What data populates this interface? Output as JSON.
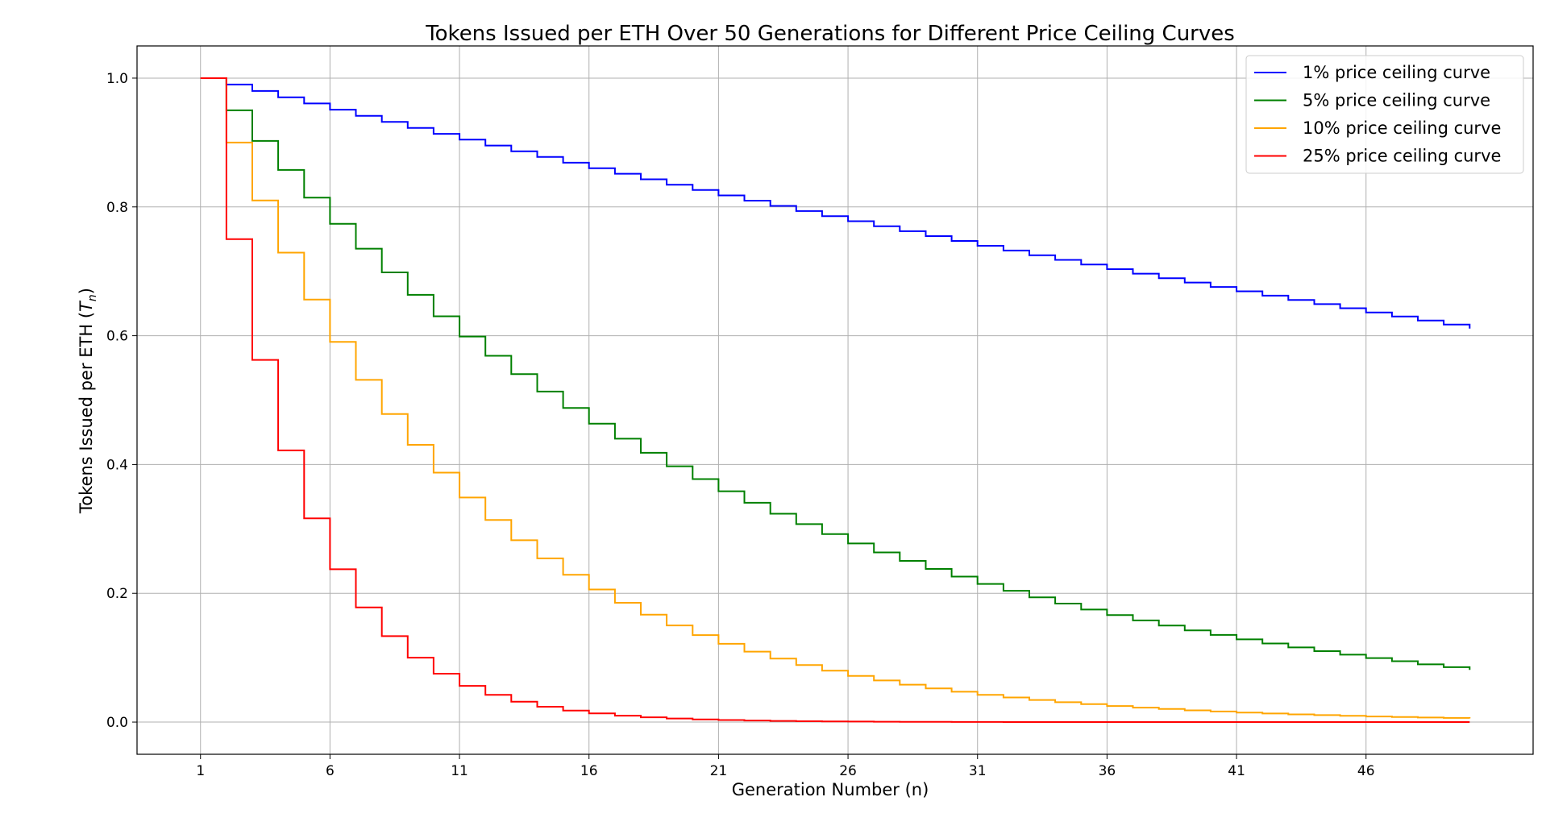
{
  "chart_data": {
    "type": "line",
    "style": "step-post",
    "title": "Tokens Issued per ETH Over 50 Generations for Different Price Ceiling Curves",
    "xlabel": "Generation Number (n)",
    "ylabel_prefix": "Tokens Issued per ETH (",
    "ylabel_symbol": "T",
    "ylabel_subscript": "n",
    "ylabel_suffix": ")",
    "xlim": [
      -1.45,
      52.45
    ],
    "ylim": [
      -0.05,
      1.05
    ],
    "xticks": [
      1,
      6,
      11,
      16,
      21,
      26,
      31,
      36,
      41,
      46
    ],
    "xtick_labels": [
      "1",
      "6",
      "11",
      "16",
      "21",
      "26",
      "31",
      "36",
      "41",
      "46"
    ],
    "yticks": [
      0.0,
      0.2,
      0.4,
      0.6,
      0.8,
      1.0
    ],
    "ytick_labels": [
      "0.0",
      "0.2",
      "0.4",
      "0.6",
      "0.8",
      "1.0"
    ],
    "grid": true,
    "legend_position": "top-right",
    "x": [
      1,
      2,
      3,
      4,
      5,
      6,
      7,
      8,
      9,
      10,
      11,
      12,
      13,
      14,
      15,
      16,
      17,
      18,
      19,
      20,
      21,
      22,
      23,
      24,
      25,
      26,
      27,
      28,
      29,
      30,
      31,
      32,
      33,
      34,
      35,
      36,
      37,
      38,
      39,
      40,
      41,
      42,
      43,
      44,
      45,
      46,
      47,
      48,
      49,
      50
    ],
    "series": [
      {
        "name": "1% price ceiling curve",
        "color": "#0000ff",
        "values": [
          1.0,
          0.99,
          0.9801,
          0.9703,
          0.9606,
          0.951,
          0.9415,
          0.9321,
          0.9227,
          0.9135,
          0.9044,
          0.8953,
          0.8864,
          0.8775,
          0.8687,
          0.86,
          0.8515,
          0.8429,
          0.8345,
          0.8262,
          0.8179,
          0.8097,
          0.8016,
          0.7936,
          0.7857,
          0.7778,
          0.77,
          0.7623,
          0.7547,
          0.7472,
          0.7397,
          0.7323,
          0.725,
          0.7177,
          0.7106,
          0.7034,
          0.6964,
          0.6894,
          0.6826,
          0.6757,
          0.669,
          0.6622,
          0.6556,
          0.6491,
          0.6426,
          0.6361,
          0.6298,
          0.6235,
          0.6173,
          0.6111
        ]
      },
      {
        "name": "5% price ceiling curve",
        "color": "#008000",
        "values": [
          1.0,
          0.95,
          0.9025,
          0.8574,
          0.8145,
          0.7738,
          0.7351,
          0.6983,
          0.6634,
          0.6302,
          0.5987,
          0.5688,
          0.5404,
          0.5133,
          0.4877,
          0.4633,
          0.4401,
          0.4181,
          0.3972,
          0.3774,
          0.3585,
          0.3406,
          0.3235,
          0.3074,
          0.292,
          0.2774,
          0.2635,
          0.2503,
          0.2378,
          0.2259,
          0.2146,
          0.2039,
          0.1937,
          0.184,
          0.1748,
          0.1661,
          0.1578,
          0.1499,
          0.1424,
          0.1353,
          0.1285,
          0.1221,
          0.116,
          0.1102,
          0.1047,
          0.0994,
          0.0945,
          0.0897,
          0.0853,
          0.081
        ]
      },
      {
        "name": "10% price ceiling curve",
        "color": "#ffa500",
        "values": [
          1.0,
          0.9,
          0.81,
          0.729,
          0.6561,
          0.5905,
          0.5314,
          0.4783,
          0.4305,
          0.3874,
          0.3487,
          0.3138,
          0.2824,
          0.2542,
          0.2288,
          0.2059,
          0.1853,
          0.1668,
          0.1501,
          0.1351,
          0.1216,
          0.1094,
          0.0985,
          0.0886,
          0.0798,
          0.0718,
          0.0646,
          0.0581,
          0.0523,
          0.0471,
          0.0424,
          0.0382,
          0.0343,
          0.0309,
          0.0278,
          0.025,
          0.0225,
          0.0203,
          0.0182,
          0.0164,
          0.0148,
          0.0133,
          0.012,
          0.0108,
          0.0097,
          0.0087,
          0.0079,
          0.0071,
          0.0064,
          0.0057
        ]
      },
      {
        "name": "25% price ceiling curve",
        "color": "#ff0000",
        "values": [
          1.0,
          0.75,
          0.5625,
          0.4219,
          0.3164,
          0.2373,
          0.178,
          0.1335,
          0.1001,
          0.0751,
          0.0563,
          0.0422,
          0.0317,
          0.0238,
          0.0178,
          0.0134,
          0.01,
          0.0075,
          0.0056,
          0.0042,
          0.0032,
          0.0024,
          0.0018,
          0.0013,
          0.001,
          0.0008,
          0.0006,
          0.0004,
          0.0003,
          0.0002,
          0.0002,
          0.0001,
          0.0001,
          0.0001,
          0.0001,
          0.0,
          0.0,
          0.0,
          0.0,
          0.0,
          0.0,
          0.0,
          0.0,
          0.0,
          0.0,
          0.0,
          0.0,
          0.0,
          0.0,
          0.0
        ]
      }
    ]
  }
}
